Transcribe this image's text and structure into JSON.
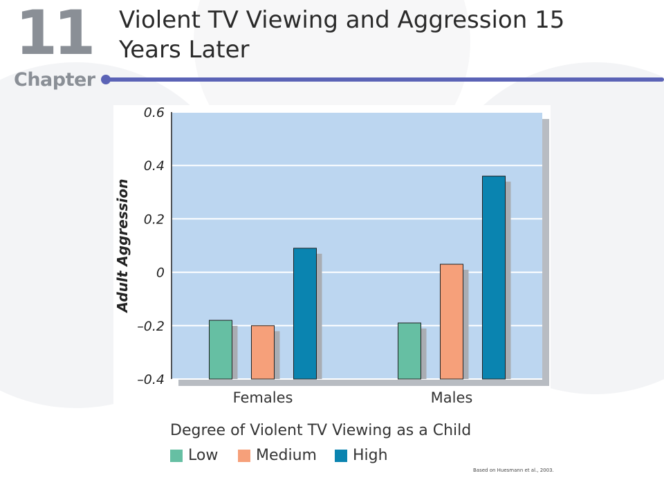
{
  "header": {
    "chapter_number": "11",
    "chapter_word": "Chapter",
    "title": "Violent TV Viewing and Aggression 15 Years Later"
  },
  "colors": {
    "accent_rule": "#5b63b6",
    "plot_bg": "#bcd6f0",
    "low": "#66bfa3",
    "medium": "#f6a07a",
    "high": "#0a84b0"
  },
  "legend": {
    "title": "Degree of Violent TV Viewing as a Child",
    "items": [
      {
        "label": "Low",
        "color": "#66bfa3"
      },
      {
        "label": "Medium",
        "color": "#f6a07a"
      },
      {
        "label": "High",
        "color": "#0a84b0"
      }
    ]
  },
  "source_note": "Based on Huesmann et al., 2003.",
  "chart_data": {
    "type": "bar",
    "title": "",
    "xlabel": "",
    "ylabel": "Adult Aggression",
    "categories": [
      "Females",
      "Males"
    ],
    "series": [
      {
        "name": "Low",
        "values": [
          -0.18,
          -0.19
        ]
      },
      {
        "name": "Medium",
        "values": [
          -0.2,
          0.03
        ]
      },
      {
        "name": "High",
        "values": [
          0.09,
          0.36
        ]
      }
    ],
    "ylim": [
      -0.4,
      0.6
    ],
    "yticks": [
      0.6,
      0.4,
      0.2,
      0,
      -0.2,
      -0.4
    ],
    "ytick_labels": [
      "0.6",
      "0.4",
      "0.2",
      "0",
      "–0.2",
      "–0.4"
    ],
    "grid": true,
    "legend_position": "bottom"
  }
}
